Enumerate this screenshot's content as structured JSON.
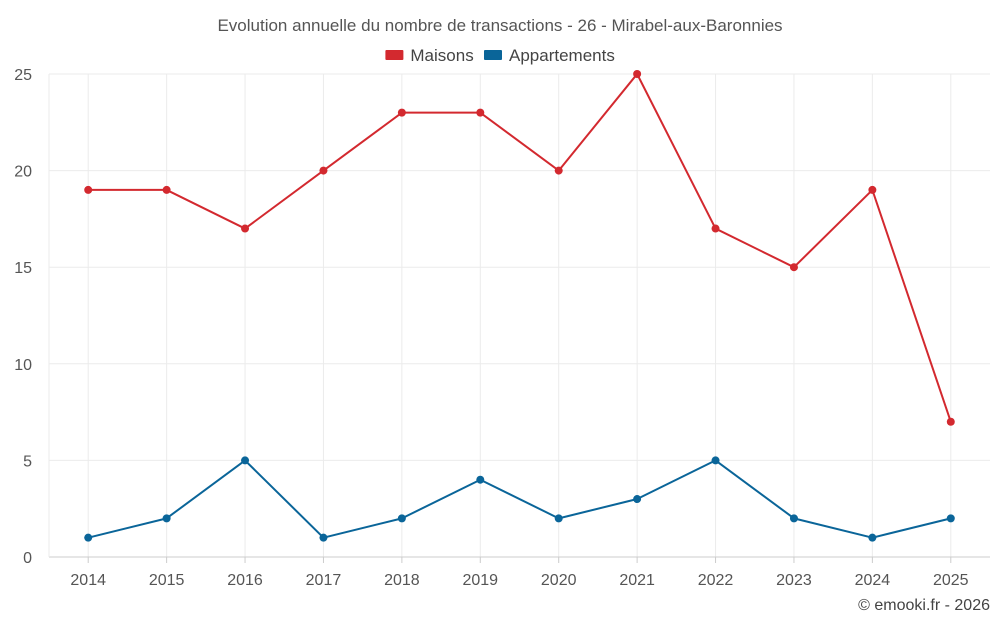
{
  "chart_data": {
    "type": "line",
    "title": "Evolution annuelle du nombre de transactions - 26 - Mirabel-aux-Baronnies",
    "xlabel": "",
    "ylabel": "",
    "x": [
      "2014",
      "2015",
      "2016",
      "2017",
      "2018",
      "2019",
      "2020",
      "2021",
      "2022",
      "2023",
      "2024",
      "2025"
    ],
    "ylim": [
      0,
      25
    ],
    "yticks": [
      "0",
      "5",
      "10",
      "15",
      "20",
      "25"
    ],
    "grid": true,
    "legend_position": "top-center",
    "series": [
      {
        "name": "Maisons",
        "color": "#d3292f",
        "values": [
          19,
          19,
          17,
          20,
          23,
          23,
          20,
          25,
          17,
          15,
          19,
          7
        ]
      },
      {
        "name": "Appartements",
        "color": "#0a6599",
        "values": [
          1,
          2,
          5,
          1,
          2,
          4,
          2,
          3,
          5,
          2,
          1,
          2
        ]
      }
    ]
  },
  "footer": {
    "credit": "© emooki.fr - 2026"
  }
}
